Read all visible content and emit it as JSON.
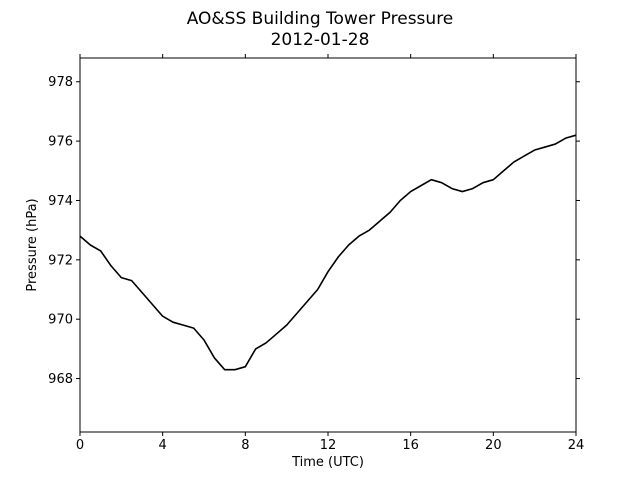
{
  "chart_data": {
    "type": "line",
    "title": "AO&SS Building Tower Pressure",
    "subtitle": "2012-01-28",
    "xlabel": "Time (UTC)",
    "ylabel": "Pressure (hPa)",
    "xlim": [
      0,
      24
    ],
    "ylim": [
      966.2,
      978.8
    ],
    "xticks": [
      0,
      4,
      8,
      12,
      16,
      20,
      24
    ],
    "xtick_labels": [
      "0",
      "4",
      "8",
      "12",
      "16",
      "20",
      "24"
    ],
    "yticks": [
      968,
      970,
      972,
      974,
      976,
      978
    ],
    "ytick_labels": [
      "968",
      "970",
      "972",
      "974",
      "976",
      "978"
    ],
    "grid": false,
    "line_color": "#000000",
    "series": [
      {
        "x": [
          0,
          0.5,
          1.0,
          1.5,
          2.0,
          2.5,
          3.0,
          3.5,
          4.0,
          4.5,
          5.0,
          5.5,
          6.0,
          6.5,
          7.0,
          7.5,
          8.0,
          8.5,
          9.0,
          9.5,
          10.0,
          10.5,
          11.0,
          11.5,
          12.0,
          12.5,
          13.0,
          13.5,
          14.0,
          14.5,
          15.0,
          15.5,
          16.0,
          16.5,
          17.0,
          17.5,
          18.0,
          18.5,
          19.0,
          19.5,
          20.0,
          20.5,
          21.0,
          21.5,
          22.0,
          22.5,
          23.0,
          23.5,
          24.0
        ],
        "y": [
          972.8,
          972.5,
          972.3,
          971.8,
          971.4,
          971.3,
          970.9,
          970.5,
          970.1,
          969.9,
          969.8,
          969.7,
          969.3,
          968.7,
          968.3,
          968.3,
          968.4,
          969.0,
          969.2,
          969.5,
          969.8,
          970.2,
          970.6,
          971.0,
          971.6,
          972.1,
          972.5,
          972.8,
          973.0,
          973.3,
          973.6,
          974.0,
          974.3,
          974.5,
          974.7,
          974.6,
          974.4,
          974.3,
          974.4,
          974.6,
          974.7,
          975.0,
          975.3,
          975.5,
          975.7,
          975.8,
          975.9,
          976.1,
          976.2
        ]
      }
    ]
  }
}
